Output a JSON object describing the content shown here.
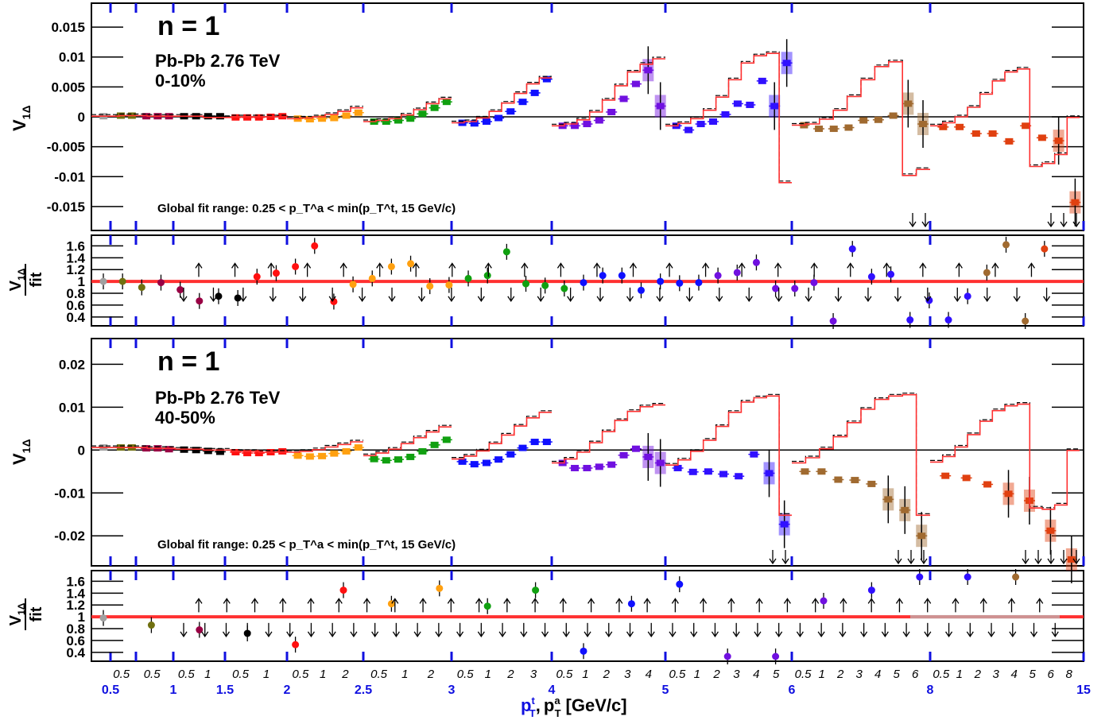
{
  "chart_data": [
    {
      "type": "scatter",
      "panel": "top-main",
      "title": "n = 1",
      "system": "Pb-Pb 2.76 TeV",
      "centrality": "0-10%",
      "ylabel_main": "V",
      "ylabel_sub": "1Δ",
      "note": "Global fit range: 0.25 < p_T^a < min(p_T^t,  15 GeV/c)",
      "ylim": [
        -0.019,
        0.019
      ],
      "yticks": [
        "0.015",
        "0.01",
        "0.005",
        "0",
        "-0.005",
        "-0.01",
        "-0.015"
      ],
      "ytick_values": [
        0.015,
        0.01,
        0.005,
        0,
        -0.005,
        -0.01,
        -0.015
      ],
      "groups": [
        {
          "color": "#a0a0a0",
          "values": [
            0.0001
          ]
        },
        {
          "color": "#707010",
          "values": [
            0.0002,
            0.0002
          ]
        },
        {
          "color": "#990044",
          "values": [
            0.0001,
            0.0001,
            0.0001
          ]
        },
        {
          "color": "#000000",
          "values": [
            0.0001,
            0.0001,
            0.0001,
            0.0001
          ]
        },
        {
          "color": "#ff1010",
          "values": [
            -0.0001,
            -0.0001,
            -0.0001,
            0.0,
            0.0001
          ]
        },
        {
          "color": "#ffa010",
          "values": [
            -0.0003,
            -0.0004,
            -0.0003,
            -0.0002,
            0.0002,
            0.0007
          ]
        },
        {
          "color": "#10a010",
          "values": [
            -0.0008,
            -0.0008,
            -0.0006,
            -0.0003,
            0.0005,
            0.0015,
            0.0025
          ]
        },
        {
          "color": "#1010ff",
          "values": [
            -0.001,
            -0.0011,
            -0.0008,
            -0.0002,
            0.0009,
            0.0025,
            0.004,
            0.0063
          ]
        },
        {
          "color": "#7010e0",
          "values": [
            -0.0015,
            -0.0015,
            -0.0012,
            -0.0006,
            0.0008,
            0.003,
            0.0055,
            0.0078,
            0.0018
          ]
        },
        {
          "color": "#3010ff",
          "values": [
            -0.0015,
            -0.0022,
            -0.0012,
            -0.0008,
            0.0004,
            0.0022,
            0.002,
            0.006,
            0.0018,
            0.009
          ]
        },
        {
          "color": "#a06a30",
          "values": [
            -0.0014,
            -0.002,
            -0.002,
            -0.0018,
            -0.0006,
            -0.0005,
            0.0002,
            0.0022,
            -0.0012
          ]
        },
        {
          "color": "#e04010",
          "values": [
            -0.0017,
            -0.0017,
            -0.0028,
            -0.0028,
            -0.0041,
            -0.0015,
            -0.0035,
            -0.004,
            -0.0143
          ]
        }
      ],
      "fit": [
        {
          "color": "#ff3030",
          "values": [
            0.0001,
            0.0002,
            0.0001,
            0.0001,
            -0.0001,
            0.0,
            0.0
          ]
        },
        {
          "color": "#ff3030",
          "values": [
            -0.0003,
            -0.0002,
            0.0,
            0.0004,
            0.0009,
            0.0015
          ]
        },
        {
          "color": "#ff3030",
          "values": [
            -0.0008,
            -0.0006,
            -0.0003,
            0.0003,
            0.0012,
            0.0022,
            0.003
          ]
        },
        {
          "color": "#ff3030",
          "values": [
            -0.001,
            -0.0008,
            -0.0002,
            0.0009,
            0.0023,
            0.0039,
            0.0055,
            0.0065
          ]
        },
        {
          "color": "#ff3030",
          "values": [
            -0.0015,
            -0.0012,
            -0.0005,
            0.0008,
            0.0028,
            0.0052,
            0.0075,
            0.0088,
            0.0097
          ]
        },
        {
          "color": "#ff3030",
          "values": [
            -0.0015,
            -0.0011,
            -0.0003,
            0.0011,
            0.0033,
            0.0062,
            0.009,
            0.0102,
            0.0106,
            -0.011
          ]
        },
        {
          "color": "#ff3030",
          "values": [
            -0.0014,
            -0.0012,
            -0.0004,
            0.0011,
            0.0034,
            0.0062,
            0.0084,
            0.0092,
            -0.0098,
            -0.0088
          ]
        },
        {
          "color": "#ff3030",
          "values": [
            -0.0015,
            -0.001,
            0.0,
            0.0016,
            0.0038,
            0.006,
            0.0075,
            0.008,
            -0.0083,
            -0.0078,
            -0.0063,
            -0.0001
          ]
        }
      ]
    },
    {
      "type": "scatter",
      "panel": "top-ratio",
      "ylabel_main": "V",
      "ylabel_sub": "1Δ",
      "ylabel_den": "fit",
      "ylim": [
        0.25,
        1.78
      ],
      "yticks": [
        "1.6",
        "1.4",
        "1.2",
        "1",
        "0.8",
        "0.6",
        "0.4"
      ],
      "ytick_values": [
        1.6,
        1.4,
        1.2,
        1.0,
        0.8,
        0.6,
        0.4
      ],
      "points": [
        1.0,
        1.0,
        0.9,
        0.98,
        0.86,
        0.67,
        0.75,
        0.72,
        1.08,
        1.14,
        1.25,
        1.6,
        0.66,
        0.95,
        1.05,
        1.25,
        1.3,
        0.92,
        0.94,
        1.05,
        1.1,
        1.5,
        0.96,
        0.93,
        0.88,
        0.98,
        1.1,
        1.1,
        0.85,
        1.0,
        0.97,
        0.98,
        1.1,
        1.15,
        1.32,
        0.88,
        0.88,
        0.98,
        0.25,
        1.55,
        1.08,
        1.12,
        0.35,
        0.68,
        0.35,
        0.75,
        1.15,
        1.62,
        0.25,
        1.55
      ],
      "arrows_up": 24,
      "arrows_down": 30
    },
    {
      "type": "scatter",
      "panel": "bottom-main",
      "title": "n = 1",
      "system": "Pb-Pb 2.76 TeV",
      "centrality": "40-50%",
      "ylabel_main": "V",
      "ylabel_sub": "1Δ",
      "note": "Global fit range: 0.25 < p_T^a < min(p_T^t,  15 GeV/c)",
      "ylim": [
        -0.027,
        0.026
      ],
      "yticks": [
        "0.02",
        "0.01",
        "0",
        "-0.01",
        "-0.02"
      ],
      "ytick_values": [
        0.02,
        0.01,
        0,
        -0.01,
        -0.02
      ],
      "groups": [
        {
          "color": "#a0a0a0",
          "values": [
            0.0006
          ]
        },
        {
          "color": "#707010",
          "values": [
            0.0006,
            0.0006
          ]
        },
        {
          "color": "#990044",
          "values": [
            0.0004,
            0.0004,
            0.0002
          ]
        },
        {
          "color": "#000000",
          "values": [
            0.0001,
            0.0,
            -0.0002,
            -0.0004
          ]
        },
        {
          "color": "#ff1010",
          "values": [
            -0.0005,
            -0.0007,
            -0.0007,
            -0.0005,
            -0.0003
          ]
        },
        {
          "color": "#ffa010",
          "values": [
            -0.0013,
            -0.0015,
            -0.0014,
            -0.0008,
            -0.0003,
            0.0006
          ]
        },
        {
          "color": "#10a010",
          "values": [
            -0.0021,
            -0.0024,
            -0.0022,
            -0.0016,
            -0.0003,
            0.0012,
            0.0024
          ]
        },
        {
          "color": "#1010ff",
          "values": [
            -0.0027,
            -0.0033,
            -0.003,
            -0.0022,
            -0.001,
            0.0005,
            0.0019,
            0.0019
          ]
        },
        {
          "color": "#7010e0",
          "values": [
            -0.003,
            -0.0042,
            -0.0042,
            -0.0039,
            -0.0034,
            -0.0012,
            0.0003,
            -0.0016,
            -0.003
          ]
        },
        {
          "color": "#3010ff",
          "values": [
            -0.0042,
            -0.0051,
            -0.005,
            -0.0056,
            -0.0061,
            -0.001,
            -0.0054,
            -0.0173
          ]
        },
        {
          "color": "#a06a30",
          "values": [
            -0.005,
            -0.005,
            -0.0069,
            -0.007,
            -0.0079,
            -0.0115,
            -0.014,
            -0.02
          ]
        },
        {
          "color": "#e04010",
          "values": [
            -0.006,
            -0.0065,
            -0.008,
            -0.0102,
            -0.0118,
            -0.0188,
            -0.0255
          ]
        }
      ],
      "fit": [
        {
          "color": "#ff3030",
          "values": [
            0.0006,
            0.0006,
            0.0004,
            0.0002,
            0.0,
            -0.0003,
            -0.0005
          ]
        },
        {
          "color": "#ff3030",
          "values": [
            -0.0005,
            -0.0003,
            0.0001,
            0.0007,
            0.0013,
            0.0019
          ]
        },
        {
          "color": "#ff3030",
          "values": [
            -0.0013,
            -0.0007,
            0.0002,
            0.0015,
            0.0029,
            0.0042,
            0.0054
          ]
        },
        {
          "color": "#ff3030",
          "values": [
            -0.0021,
            -0.0014,
            -0.0002,
            0.0015,
            0.0035,
            0.0056,
            0.0075,
            0.0088
          ]
        },
        {
          "color": "#ff3030",
          "values": [
            -0.003,
            -0.0021,
            -0.0005,
            0.0017,
            0.0043,
            0.0069,
            0.009,
            0.0101,
            0.0105
          ]
        },
        {
          "color": "#ff3030",
          "values": [
            -0.0035,
            -0.0023,
            -0.0003,
            0.0023,
            0.0055,
            0.0088,
            0.0112,
            0.0122,
            0.0126,
            -0.0152
          ]
        },
        {
          "color": "#ff3030",
          "values": [
            -0.003,
            -0.0018,
            0.0003,
            0.0031,
            0.0064,
            0.0095,
            0.0118,
            0.0126,
            0.0129,
            -0.0152
          ]
        },
        {
          "color": "#ff3030",
          "values": [
            -0.0028,
            -0.0015,
            0.0007,
            0.0036,
            0.0067,
            0.0092,
            0.0103,
            0.0107,
            -0.0135,
            -0.0138,
            -0.0128,
            -0.0001
          ]
        }
      ]
    },
    {
      "type": "scatter",
      "panel": "bottom-ratio",
      "ylabel_main": "V",
      "ylabel_sub": "1Δ",
      "ylabel_den": "fit",
      "ylim": [
        0.25,
        1.78
      ],
      "yticks": [
        "1.6",
        "1.4",
        "1.2",
        "1",
        "0.8",
        "0.6",
        "0.4"
      ],
      "ytick_values": [
        1.6,
        1.4,
        1.2,
        1.0,
        0.8,
        0.6,
        0.4
      ],
      "points": [
        0.98,
        0.86,
        0.78,
        0.72,
        0.53,
        1.45,
        1.22,
        1.48,
        1.18,
        1.45,
        0.42,
        1.22,
        1.55,
        0.3,
        0.27,
        1.27,
        1.45,
        1.75,
        1.7,
        1.7
      ],
      "arrows_up": 31,
      "arrows_down": 42
    }
  ],
  "xaxis": {
    "label_main": "p",
    "label_t_sup": "t",
    "label_t_sub": "T",
    "label_comma": ",",
    "label_a_sup": "a",
    "label_a_sub": "T",
    "label_units": "[GeV/c]",
    "major_ticks": [
      "0.5",
      "1",
      "1.5",
      "2",
      "2.5",
      "3",
      "4",
      "5",
      "6",
      "8",
      "15"
    ],
    "minor_labels": [
      [
        "0.5"
      ],
      [
        "0.5"
      ],
      [
        "0.5",
        "1"
      ],
      [
        "0.5",
        "1"
      ],
      [
        "0.5",
        "1",
        "2"
      ],
      [
        "0.5",
        "1",
        "2"
      ],
      [
        "0.5",
        "1",
        "2",
        "3"
      ],
      [
        "0.5",
        "1",
        "2",
        "3",
        "4"
      ],
      [
        "0.5",
        "1",
        "2",
        "3",
        "4",
        "5"
      ],
      [
        "0.5",
        "1",
        "2",
        "3",
        "4",
        "5",
        "6"
      ],
      [
        "0.5",
        "1",
        "2",
        "3",
        "4",
        "5",
        "6",
        "8"
      ]
    ]
  }
}
